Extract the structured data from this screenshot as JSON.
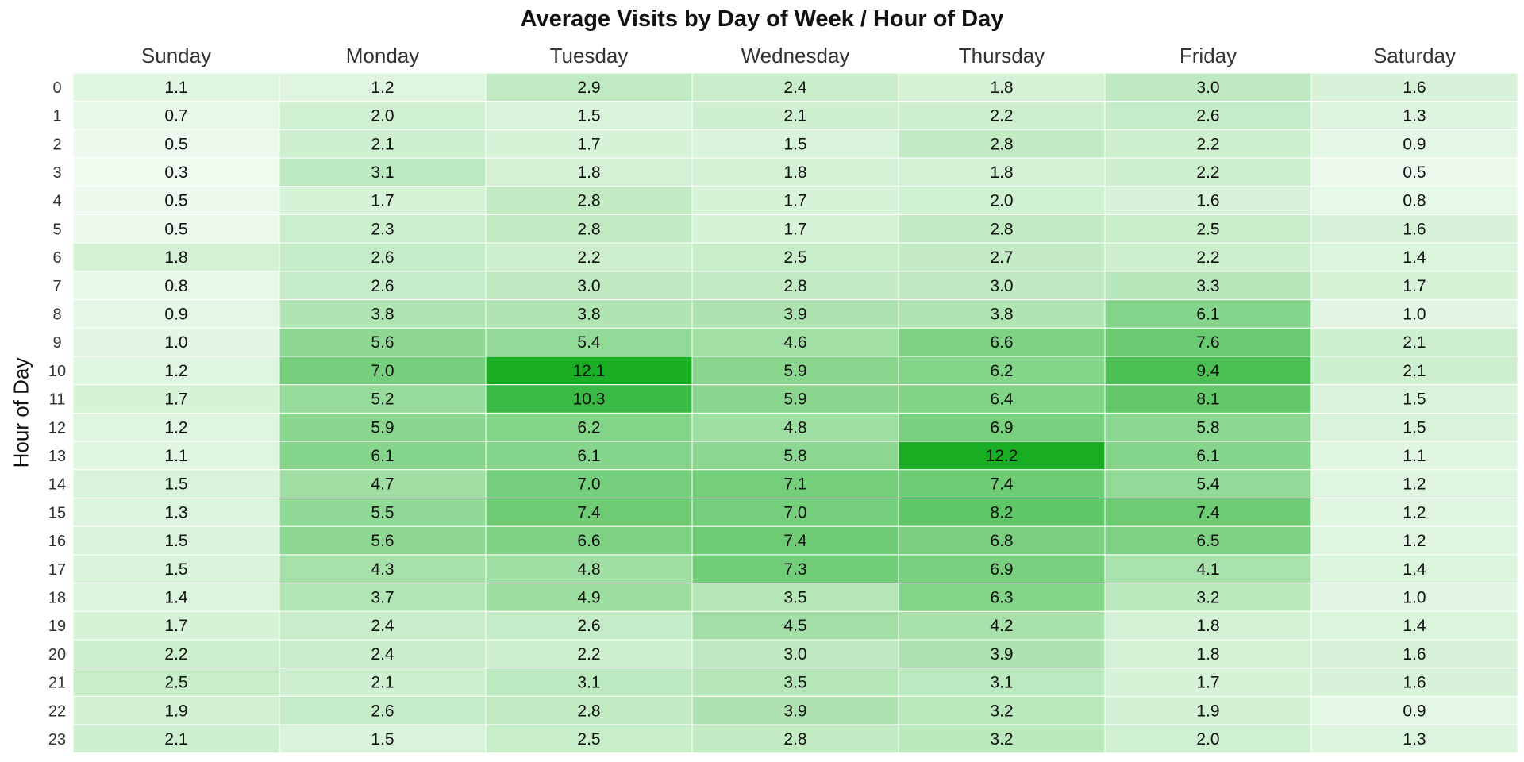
{
  "chart_data": {
    "type": "heatmap",
    "title": "Average Visits by Day of Week / Hour of Day",
    "ylabel": "Hour of Day",
    "xlabel": "",
    "x_categories": [
      "Sunday",
      "Monday",
      "Tuesday",
      "Wednesday",
      "Thursday",
      "Friday",
      "Saturday"
    ],
    "y_categories": [
      "0",
      "1",
      "2",
      "3",
      "4",
      "5",
      "6",
      "7",
      "8",
      "9",
      "10",
      "11",
      "12",
      "13",
      "14",
      "15",
      "16",
      "17",
      "18",
      "19",
      "20",
      "21",
      "22",
      "23"
    ],
    "values": [
      [
        1.1,
        1.2,
        2.9,
        2.4,
        1.8,
        3.0,
        1.6
      ],
      [
        0.7,
        2.0,
        1.5,
        2.1,
        2.2,
        2.6,
        1.3
      ],
      [
        0.5,
        2.1,
        1.7,
        1.5,
        2.8,
        2.2,
        0.9
      ],
      [
        0.3,
        3.1,
        1.8,
        1.8,
        1.8,
        2.2,
        0.5
      ],
      [
        0.5,
        1.7,
        2.8,
        1.7,
        2.0,
        1.6,
        0.8
      ],
      [
        0.5,
        2.3,
        2.8,
        1.7,
        2.8,
        2.5,
        1.6
      ],
      [
        1.8,
        2.6,
        2.2,
        2.5,
        2.7,
        2.2,
        1.4
      ],
      [
        0.8,
        2.6,
        3.0,
        2.8,
        3.0,
        3.3,
        1.7
      ],
      [
        0.9,
        3.8,
        3.8,
        3.9,
        3.8,
        6.1,
        1.0
      ],
      [
        1.0,
        5.6,
        5.4,
        4.6,
        6.6,
        7.6,
        2.1
      ],
      [
        1.2,
        7.0,
        12.1,
        5.9,
        6.2,
        9.4,
        2.1
      ],
      [
        1.7,
        5.2,
        10.3,
        5.9,
        6.4,
        8.1,
        1.5
      ],
      [
        1.2,
        5.9,
        6.2,
        4.8,
        6.9,
        5.8,
        1.5
      ],
      [
        1.1,
        6.1,
        6.1,
        5.8,
        12.2,
        6.1,
        1.1
      ],
      [
        1.5,
        4.7,
        7.0,
        7.1,
        7.4,
        5.4,
        1.2
      ],
      [
        1.3,
        5.5,
        7.4,
        7.0,
        8.2,
        7.4,
        1.2
      ],
      [
        1.5,
        5.6,
        6.6,
        7.4,
        6.8,
        6.5,
        1.2
      ],
      [
        1.5,
        4.3,
        4.8,
        7.3,
        6.9,
        4.1,
        1.4
      ],
      [
        1.4,
        3.7,
        4.9,
        3.5,
        6.3,
        3.2,
        1.0
      ],
      [
        1.7,
        2.4,
        2.6,
        4.5,
        4.2,
        1.8,
        1.4
      ],
      [
        2.2,
        2.4,
        2.2,
        3.0,
        3.9,
        1.8,
        1.6
      ],
      [
        2.5,
        2.1,
        3.1,
        3.5,
        3.1,
        1.7,
        1.6
      ],
      [
        1.9,
        2.6,
        2.8,
        3.9,
        3.2,
        1.9,
        0.9
      ],
      [
        2.1,
        1.5,
        2.5,
        2.8,
        3.2,
        2.0,
        1.3
      ]
    ],
    "value_format": "0.0",
    "color_scale": {
      "low": "#effbef",
      "high": "#18ad23"
    },
    "grid_line_color": "#ffffff",
    "legend": "none"
  }
}
